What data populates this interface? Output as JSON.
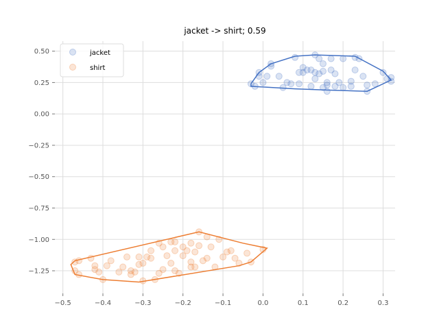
{
  "chart_data": {
    "type": "scatter",
    "title": "jacket -> shirt; 0.59",
    "xlabel": "",
    "ylabel": "",
    "xlim": [
      -0.52,
      0.33
    ],
    "ylim": [
      -1.43,
      0.58
    ],
    "x_ticks": [
      -0.5,
      -0.4,
      -0.3,
      -0.2,
      -0.1,
      0.0,
      0.1,
      0.2,
      0.3
    ],
    "x_tick_labels": [
      "−0.5",
      "−0.4",
      "−0.3",
      "−0.2",
      "−0.1",
      "0.0",
      "0.1",
      "0.2",
      "0.3"
    ],
    "y_ticks": [
      0.5,
      0.25,
      0.0,
      -0.25,
      -0.5,
      -0.75,
      -1.0,
      -1.25
    ],
    "y_tick_labels": [
      "0.50",
      "0.25",
      "0.00",
      "−0.25",
      "−0.50",
      "−0.75",
      "−1.00",
      "−1.25"
    ],
    "grid": true,
    "legend": "top-left",
    "series": [
      {
        "name": "jacket",
        "color": "#4472c4",
        "points": [
          [
            -0.03,
            0.24
          ],
          [
            -0.02,
            0.22
          ],
          [
            -0.01,
            0.3
          ],
          [
            -0.01,
            0.33
          ],
          [
            0.0,
            0.25
          ],
          [
            0.01,
            0.3
          ],
          [
            0.02,
            0.4
          ],
          [
            0.02,
            0.38
          ],
          [
            0.04,
            0.3
          ],
          [
            0.05,
            0.21
          ],
          [
            0.07,
            0.24
          ],
          [
            0.08,
            0.45
          ],
          [
            0.09,
            0.33
          ],
          [
            0.09,
            0.24
          ],
          [
            0.1,
            0.33
          ],
          [
            0.1,
            0.37
          ],
          [
            0.11,
            0.35
          ],
          [
            0.12,
            0.35
          ],
          [
            0.12,
            0.22
          ],
          [
            0.13,
            0.47
          ],
          [
            0.13,
            0.33
          ],
          [
            0.14,
            0.32
          ],
          [
            0.14,
            0.44
          ],
          [
            0.15,
            0.4
          ],
          [
            0.15,
            0.34
          ],
          [
            0.15,
            0.21
          ],
          [
            0.16,
            0.25
          ],
          [
            0.16,
            0.18
          ],
          [
            0.16,
            0.23
          ],
          [
            0.17,
            0.44
          ],
          [
            0.17,
            0.35
          ],
          [
            0.18,
            0.32
          ],
          [
            0.18,
            0.22
          ],
          [
            0.19,
            0.25
          ],
          [
            0.2,
            0.44
          ],
          [
            0.2,
            0.21
          ],
          [
            0.22,
            0.26
          ],
          [
            0.22,
            0.22
          ],
          [
            0.23,
            0.35
          ],
          [
            0.23,
            0.45
          ],
          [
            0.24,
            0.44
          ],
          [
            0.25,
            0.3
          ],
          [
            0.26,
            0.18
          ],
          [
            0.26,
            0.23
          ],
          [
            0.28,
            0.24
          ],
          [
            0.3,
            0.33
          ],
          [
            0.31,
            0.28
          ],
          [
            0.32,
            0.26
          ],
          [
            0.32,
            0.29
          ],
          [
            0.13,
            0.28
          ],
          [
            0.06,
            0.25
          ]
        ],
        "hull": [
          [
            -0.03,
            0.24
          ],
          [
            -0.01,
            0.33
          ],
          [
            0.02,
            0.4
          ],
          [
            0.08,
            0.46
          ],
          [
            0.13,
            0.47
          ],
          [
            0.23,
            0.46
          ],
          [
            0.3,
            0.34
          ],
          [
            0.32,
            0.27
          ],
          [
            0.26,
            0.18
          ],
          [
            0.16,
            0.19
          ],
          [
            0.08,
            0.2
          ],
          [
            -0.03,
            0.22
          ],
          [
            -0.03,
            0.24
          ]
        ]
      },
      {
        "name": "shirt",
        "color": "#ed7d31",
        "points": [
          [
            -0.47,
            -1.18
          ],
          [
            -0.47,
            -1.25
          ],
          [
            -0.46,
            -1.17
          ],
          [
            -0.46,
            -1.28
          ],
          [
            -0.43,
            -1.15
          ],
          [
            -0.42,
            -1.21
          ],
          [
            -0.42,
            -1.24
          ],
          [
            -0.41,
            -1.26
          ],
          [
            -0.4,
            -1.32
          ],
          [
            -0.39,
            -1.21
          ],
          [
            -0.38,
            -1.17
          ],
          [
            -0.36,
            -1.26
          ],
          [
            -0.35,
            -1.22
          ],
          [
            -0.34,
            -1.14
          ],
          [
            -0.33,
            -1.28
          ],
          [
            -0.32,
            -1.26
          ],
          [
            -0.31,
            -1.2
          ],
          [
            -0.31,
            -1.14
          ],
          [
            -0.3,
            -1.33
          ],
          [
            -0.3,
            -1.19
          ],
          [
            -0.29,
            -1.14
          ],
          [
            -0.28,
            -1.09
          ],
          [
            -0.28,
            -1.15
          ],
          [
            -0.27,
            -1.32
          ],
          [
            -0.26,
            -1.03
          ],
          [
            -0.26,
            -1.27
          ],
          [
            -0.25,
            -1.06
          ],
          [
            -0.25,
            -1.24
          ],
          [
            -0.24,
            -1.13
          ],
          [
            -0.23,
            -1.19
          ],
          [
            -0.23,
            -1.02
          ],
          [
            -0.22,
            -1.02
          ],
          [
            -0.22,
            -1.09
          ],
          [
            -0.21,
            -1.27
          ],
          [
            -0.2,
            -1.13
          ],
          [
            -0.2,
            -1.06
          ],
          [
            -0.19,
            -1.09
          ],
          [
            -0.18,
            -1.22
          ],
          [
            -0.18,
            -1.03
          ],
          [
            -0.17,
            -1.22
          ],
          [
            -0.17,
            -1.1
          ],
          [
            -0.16,
            -0.94
          ],
          [
            -0.16,
            -1.05
          ],
          [
            -0.15,
            -1.17
          ],
          [
            -0.14,
            -0.98
          ],
          [
            -0.14,
            -1.15
          ],
          [
            -0.13,
            -1.06
          ],
          [
            -0.12,
            -1.22
          ],
          [
            -0.11,
            -1.0
          ],
          [
            -0.1,
            -1.14
          ],
          [
            -0.09,
            -1.1
          ],
          [
            -0.08,
            -1.09
          ],
          [
            -0.07,
            -1.15
          ],
          [
            -0.06,
            -1.19
          ],
          [
            -0.04,
            -1.11
          ],
          [
            -0.03,
            -1.18
          ],
          [
            0.0,
            -1.08
          ],
          [
            -0.22,
            -1.25
          ],
          [
            -0.33,
            -1.25
          ],
          [
            -0.18,
            -1.18
          ]
        ],
        "hull": [
          [
            -0.47,
            -1.17
          ],
          [
            -0.16,
            -0.94
          ],
          [
            -0.05,
            -1.03
          ],
          [
            0.01,
            -1.07
          ],
          [
            -0.03,
            -1.18
          ],
          [
            -0.06,
            -1.21
          ],
          [
            -0.31,
            -1.34
          ],
          [
            -0.4,
            -1.32
          ],
          [
            -0.47,
            -1.28
          ],
          [
            -0.48,
            -1.2
          ],
          [
            -0.47,
            -1.17
          ]
        ]
      }
    ]
  }
}
